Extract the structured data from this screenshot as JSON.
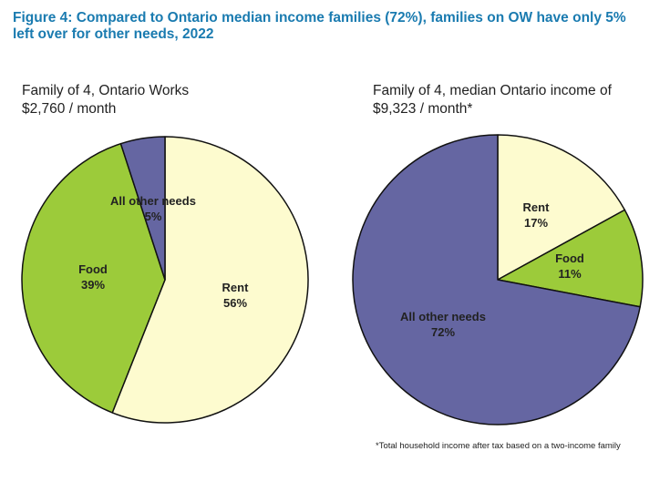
{
  "title": "Figure 4: Compared to Ontario median income families (72%), families on OW have only 5% left over for other needs, 2022",
  "footnote": "*Total household income after tax based on a two-income family",
  "colors": {
    "rent": "#fdfbcf",
    "food": "#9ccb3a",
    "other": "#6566a2",
    "title": "#1a7bb0",
    "outline": "#111111"
  },
  "chart_data": [
    {
      "type": "pie",
      "title": "Family of 4, Ontario Works",
      "subtitle": "$2,760 / month",
      "slices": [
        {
          "label": "Rent",
          "value": 56,
          "value_label": "56%",
          "color": "#fdfbcf"
        },
        {
          "label": "Food",
          "value": 39,
          "value_label": "39%",
          "color": "#9ccb3a"
        },
        {
          "label": "All other needs",
          "value": 5,
          "value_label": "5%",
          "color": "#6566a2"
        }
      ]
    },
    {
      "type": "pie",
      "title": "Family of 4, median Ontario income of",
      "subtitle": "$9,323 / month*",
      "slices": [
        {
          "label": "Rent",
          "value": 17,
          "value_label": "17%",
          "color": "#fdfbcf"
        },
        {
          "label": "Food",
          "value": 11,
          "value_label": "11%",
          "color": "#9ccb3a"
        },
        {
          "label": "All other needs",
          "value": 72,
          "value_label": "72%",
          "color": "#6566a2"
        }
      ]
    }
  ]
}
